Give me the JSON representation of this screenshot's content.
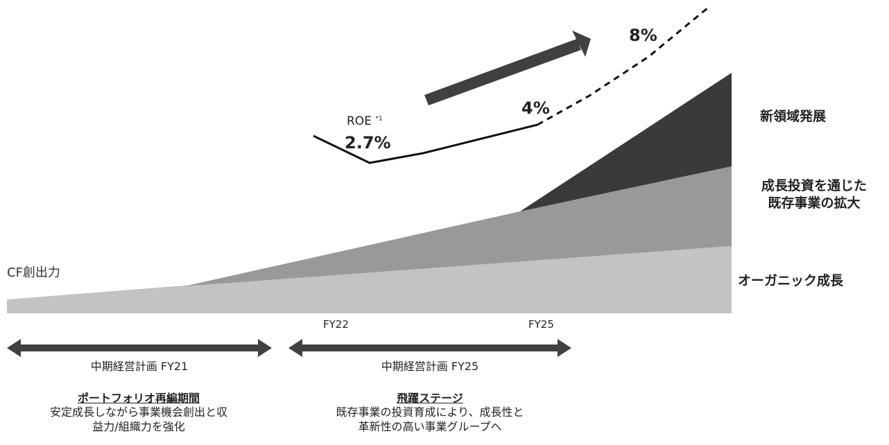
{
  "layers": {
    "new_domain": "新領域発展",
    "growth_investment_line1": "成長投資を通じた",
    "growth_investment_line2": "既存事業の拡大",
    "organic": "オーガニック成長"
  },
  "cf_label": "CF創出力",
  "roe": {
    "label": "ROE",
    "footnote_mark": "*1",
    "start": "2.7%",
    "mid": "4%",
    "target": "8%"
  },
  "fy_ticks": [
    "FY22",
    "FY25"
  ],
  "plans": [
    {
      "name": "中期経営計画 FY21",
      "title": "ポートフォリオ再編期間",
      "desc_line1": "安定成長しながら事業機会創出と収",
      "desc_line2": "益力/組織力を強化"
    },
    {
      "name": "中期経営計画 FY25",
      "title": "飛躍ステージ",
      "desc_line1": "既存事業の投資育成により、成長性と",
      "desc_line2": "革新性の高い事業グループへ"
    }
  ],
  "colors": {
    "organic": "#c3c3c3",
    "growth": "#999999",
    "new": "#3a3a3a",
    "arrow": "#404040",
    "line": "#111111"
  }
}
